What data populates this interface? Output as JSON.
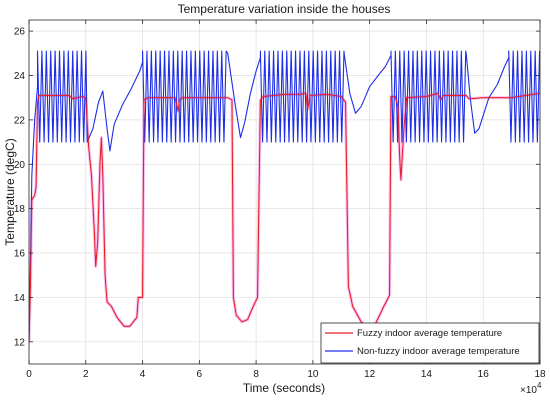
{
  "chart_data": {
    "type": "line",
    "title": "Temperature variation inside the houses",
    "xlabel": "Time (seconds)",
    "ylabel": "Temperature (degC)",
    "x_multiplier_label": "×10",
    "x_multiplier_exponent": "4",
    "x_multiplier_value": 10000,
    "xlim": [
      0,
      18
    ],
    "ylim": [
      11,
      26.5
    ],
    "xticks": [
      0,
      2,
      4,
      6,
      8,
      10,
      12,
      14,
      16,
      18
    ],
    "yticks": [
      12,
      14,
      16,
      18,
      20,
      22,
      24,
      26
    ],
    "grid": true,
    "legend_position": "bottom-right",
    "colors": {
      "fuzzy": "#e8202a",
      "nonfuzzy": "#1e2ee6",
      "fuzzy_shade": "#f5b8f0",
      "axes": "#262626",
      "grid": "#dfdfdf"
    },
    "series": [
      {
        "name": "Fuzzy indoor average temperature",
        "key": "fuzzy",
        "points": [
          [
            0.0,
            12.0
          ],
          [
            0.05,
            14.5
          ],
          [
            0.1,
            18.4
          ],
          [
            0.2,
            18.6
          ],
          [
            0.25,
            19.0
          ],
          [
            0.3,
            22.8
          ],
          [
            0.35,
            23.1
          ],
          [
            1.0,
            23.1
          ],
          [
            1.4,
            23.1
          ],
          [
            1.55,
            22.95
          ],
          [
            1.85,
            23.05
          ],
          [
            2.0,
            23.0
          ],
          [
            2.1,
            20.8
          ],
          [
            2.2,
            19.5
          ],
          [
            2.3,
            17.0
          ],
          [
            2.35,
            15.4
          ],
          [
            2.42,
            16.5
          ],
          [
            2.5,
            20.0
          ],
          [
            2.55,
            21.2
          ],
          [
            2.6,
            19.5
          ],
          [
            2.68,
            15.0
          ],
          [
            2.75,
            13.8
          ],
          [
            2.9,
            13.6
          ],
          [
            3.1,
            13.1
          ],
          [
            3.35,
            12.7
          ],
          [
            3.55,
            12.7
          ],
          [
            3.8,
            13.1
          ],
          [
            3.85,
            14.0
          ],
          [
            4.0,
            14.0
          ],
          [
            4.05,
            22.9
          ],
          [
            4.2,
            23.0
          ],
          [
            5.15,
            23.0
          ],
          [
            5.25,
            22.4
          ],
          [
            5.3,
            22.9
          ],
          [
            5.4,
            23.0
          ],
          [
            7.0,
            23.0
          ],
          [
            7.15,
            22.9
          ],
          [
            7.2,
            14.0
          ],
          [
            7.3,
            13.2
          ],
          [
            7.5,
            12.9
          ],
          [
            7.7,
            13.0
          ],
          [
            7.9,
            13.6
          ],
          [
            8.05,
            14.0
          ],
          [
            8.15,
            22.9
          ],
          [
            8.25,
            23.05
          ],
          [
            9.0,
            23.15
          ],
          [
            9.55,
            23.15
          ],
          [
            9.75,
            23.2
          ],
          [
            9.82,
            22.5
          ],
          [
            9.9,
            23.1
          ],
          [
            10.5,
            23.15
          ],
          [
            11.0,
            23.05
          ],
          [
            11.15,
            22.8
          ],
          [
            11.25,
            14.5
          ],
          [
            11.4,
            13.6
          ],
          [
            11.7,
            12.9
          ],
          [
            12.0,
            12.6
          ],
          [
            12.2,
            12.8
          ],
          [
            12.5,
            13.6
          ],
          [
            12.7,
            14.1
          ],
          [
            12.75,
            23.05
          ],
          [
            12.9,
            23.05
          ],
          [
            13.0,
            22.6
          ],
          [
            13.05,
            20.5
          ],
          [
            13.1,
            19.3
          ],
          [
            13.2,
            21.5
          ],
          [
            13.3,
            23.0
          ],
          [
            14.0,
            23.05
          ],
          [
            14.4,
            23.2
          ],
          [
            14.5,
            22.9
          ],
          [
            14.6,
            23.1
          ],
          [
            15.4,
            23.1
          ],
          [
            15.5,
            22.95
          ],
          [
            16.0,
            23.0
          ],
          [
            17.0,
            23.0
          ],
          [
            17.5,
            23.1
          ],
          [
            18.0,
            23.2
          ]
        ]
      },
      {
        "name": "Non-fuzzy indoor average temperature",
        "key": "nonfuzzy",
        "initial_rise": [
          [
            0.0,
            12.0
          ],
          [
            0.05,
            15.5
          ],
          [
            0.1,
            19.5
          ],
          [
            0.2,
            22.0
          ],
          [
            0.3,
            23.5
          ]
        ],
        "oscillation": {
          "low": 21.0,
          "high": 25.1,
          "period_1e4_s": 0.155
        },
        "segments": [
          {
            "mode": "osc",
            "x": [
              0.3,
              2.05
            ]
          },
          {
            "mode": "free",
            "points": [
              [
                2.05,
                21.0
              ],
              [
                2.25,
                21.6
              ],
              [
                2.45,
                22.8
              ],
              [
                2.6,
                23.3
              ],
              [
                2.75,
                21.6
              ],
              [
                2.85,
                20.6
              ],
              [
                3.0,
                21.8
              ],
              [
                3.3,
                22.7
              ],
              [
                3.6,
                23.4
              ],
              [
                3.9,
                24.2
              ],
              [
                4.0,
                24.6
              ]
            ]
          },
          {
            "mode": "osc",
            "x": [
              4.0,
              7.0
            ]
          },
          {
            "mode": "free",
            "points": [
              [
                7.0,
                25.0
              ],
              [
                7.25,
                22.8
              ],
              [
                7.45,
                21.2
              ],
              [
                7.6,
                21.9
              ],
              [
                7.8,
                23.2
              ],
              [
                8.0,
                24.2
              ],
              [
                8.15,
                24.8
              ]
            ]
          },
          {
            "mode": "osc",
            "x": [
              8.15,
              11.1
            ]
          },
          {
            "mode": "free",
            "points": [
              [
                11.1,
                25.0
              ],
              [
                11.3,
                23.2
              ],
              [
                11.5,
                22.3
              ],
              [
                11.7,
                22.6
              ],
              [
                12.0,
                23.5
              ],
              [
                12.3,
                24.0
              ],
              [
                12.55,
                24.4
              ],
              [
                12.75,
                24.9
              ]
            ]
          },
          {
            "mode": "osc",
            "x": [
              12.75,
              15.4
            ]
          },
          {
            "mode": "free",
            "points": [
              [
                15.4,
                25.0
              ],
              [
                15.55,
                22.9
              ],
              [
                15.7,
                21.4
              ],
              [
                15.85,
                21.6
              ],
              [
                16.2,
                23.0
              ],
              [
                16.5,
                23.6
              ],
              [
                16.75,
                24.4
              ],
              [
                16.9,
                24.8
              ]
            ]
          },
          {
            "mode": "osc",
            "x": [
              16.9,
              18.0
            ]
          }
        ]
      }
    ]
  }
}
